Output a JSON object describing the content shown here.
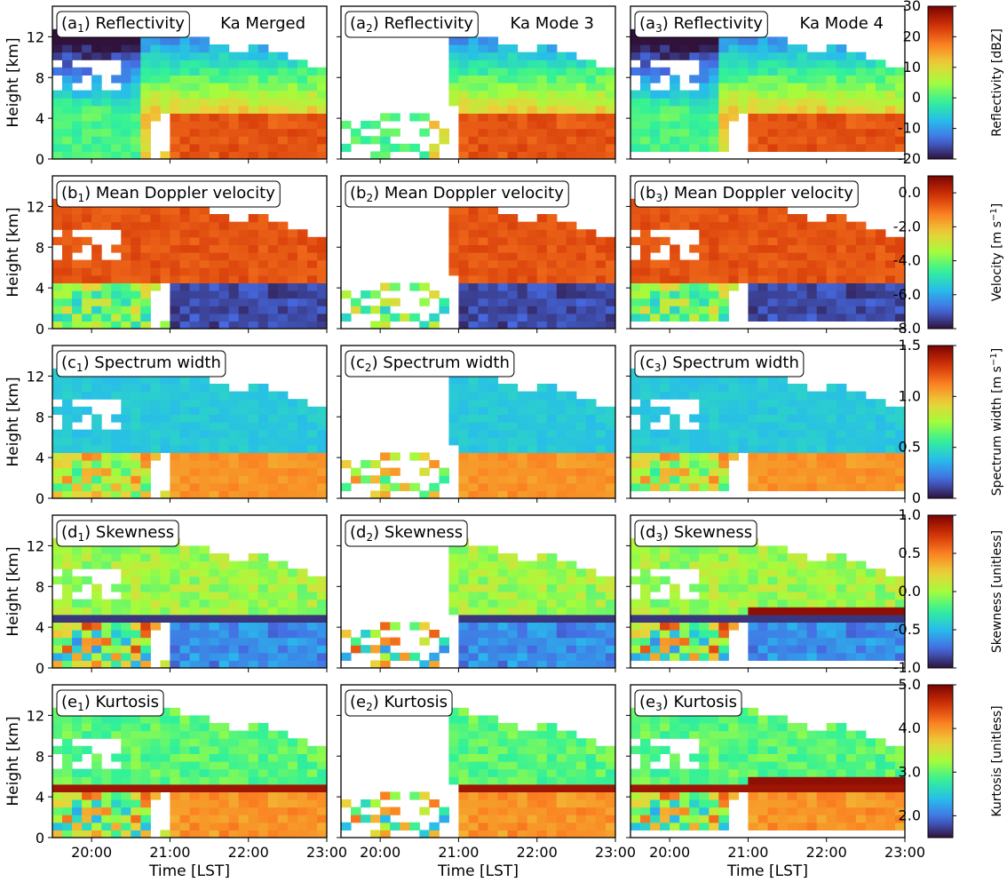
{
  "chart_data": {
    "type": "heatmap",
    "layout": {
      "rows": 5,
      "cols": 3
    },
    "columns": [
      {
        "id": "1",
        "mode": "Ka Merged"
      },
      {
        "id": "2",
        "mode": "Ka Mode 3"
      },
      {
        "id": "3",
        "mode": "Ka Mode 4"
      }
    ],
    "rows": [
      {
        "letter": "a",
        "title": "Reflectivity",
        "cbar_label": "Reflectivity [dBZ]",
        "cbar_ticks": [
          "-20",
          "-10",
          "0",
          "10",
          "20",
          "30"
        ],
        "range": [
          -20,
          30
        ]
      },
      {
        "letter": "b",
        "title": "Mean Doppler velocity",
        "cbar_label": "Velocity [m s",
        "cbar_label_sup": "−1",
        "cbar_label_end": "]",
        "cbar_ticks": [
          "-8.0",
          "-6.0",
          "-4.0",
          "-2.0",
          "0.0"
        ],
        "range": [
          -8.0,
          1.0
        ]
      },
      {
        "letter": "c",
        "title": "Spectrum width",
        "cbar_label": "Spectrum width [m s",
        "cbar_label_sup": "−1",
        "cbar_label_end": "]",
        "cbar_ticks": [
          "0",
          "0.5",
          "1.0",
          "1.5"
        ],
        "range": [
          0,
          1.5
        ]
      },
      {
        "letter": "d",
        "title": "Skewness",
        "cbar_label": "Skewness [unitless]",
        "cbar_ticks": [
          "-1.0",
          "-0.5",
          "0.0",
          "0.5",
          "1.0"
        ],
        "range": [
          -1.0,
          1.0
        ]
      },
      {
        "letter": "e",
        "title": "Kurtosis",
        "cbar_label": "Kurtosis [unitless]",
        "cbar_ticks": [
          "2.0",
          "3.0",
          "4.0",
          "5.0"
        ],
        "range": [
          1.5,
          5.0
        ]
      }
    ],
    "x_axis": {
      "label": "Time [LST]",
      "ticks": [
        "20:00",
        "21:00",
        "22:00",
        "23:00"
      ],
      "range_hours": [
        19.5,
        23.0
      ]
    },
    "y_axis": {
      "label": "Height [km]",
      "ticks": [
        "0",
        "4",
        "8",
        "12"
      ],
      "range_km": [
        0,
        15
      ]
    },
    "colormap": "turbo",
    "features": {
      "melting_layer_km": 4.7,
      "rain_onset_lst": "21:00",
      "mode3_min_height_km": 0,
      "mode4_min_height_km": 1.0
    }
  }
}
